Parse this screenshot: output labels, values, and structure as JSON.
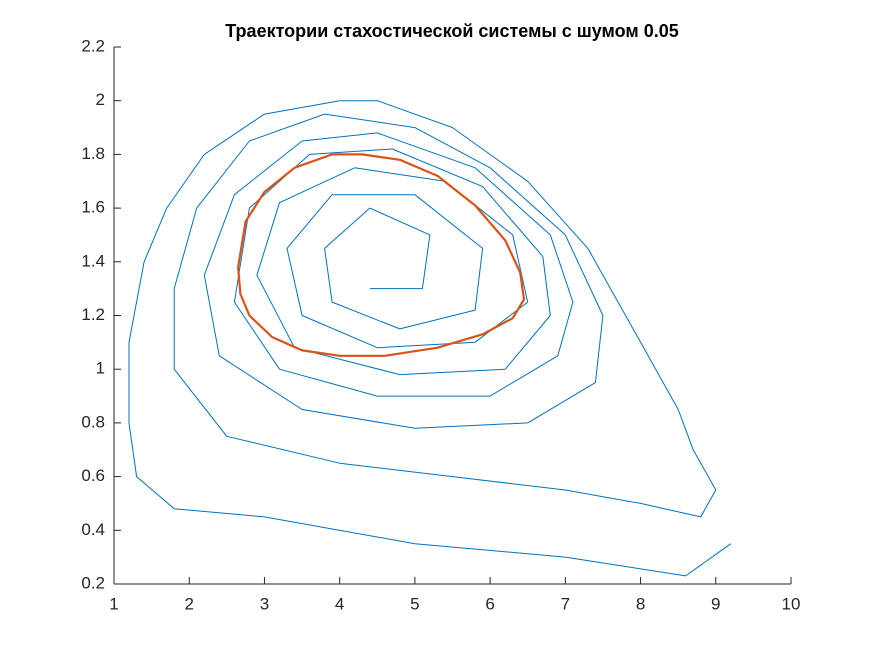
{
  "chart_data": {
    "type": "line",
    "title": "Траектории стахостической системы с шумом 0.05",
    "xlim": [
      1,
      10
    ],
    "xticks": [
      1,
      2,
      3,
      4,
      5,
      6,
      7,
      8,
      9,
      10
    ],
    "ylim": [
      0.2,
      2.2
    ],
    "yticks": [
      0.2,
      0.4,
      0.6,
      0.8,
      1,
      1.2,
      1.4,
      1.6,
      1.8,
      2,
      2.2
    ],
    "grid": false,
    "series": [
      {
        "color": "#0072bd",
        "x": [
          9.2,
          8.6,
          7,
          5,
          3,
          1.8,
          1.3,
          1.2,
          1.2,
          1.4,
          1.7,
          2.2,
          3,
          4,
          4.5,
          5.5,
          6.5,
          7.3,
          8,
          8.5,
          8.7,
          9.0,
          8.8,
          8.0,
          7.0,
          5.5,
          4,
          2.5,
          1.8,
          1.8,
          2.1,
          2.8,
          3.8,
          5,
          6,
          7,
          7.5,
          7.4,
          6.5,
          5,
          3.5,
          2.4,
          2.2,
          2.6,
          3.5,
          4.5,
          5.8,
          6.8,
          7.1,
          6.9,
          6,
          4.5,
          3.2,
          2.6,
          2.8,
          3.6,
          4.7,
          5.9,
          6.7,
          6.8,
          6.2,
          4.8,
          3.4,
          2.9,
          3.2,
          4.2,
          5.4,
          6.3,
          6.5,
          5.8,
          4.5,
          3.5,
          3.3,
          3.9,
          5,
          5.9,
          5.8,
          4.8,
          3.9,
          3.8,
          4.4,
          5.2,
          5.1,
          4.4
        ],
        "values": [
          0.35,
          0.23,
          0.3,
          0.35,
          0.45,
          0.48,
          0.6,
          0.8,
          1.1,
          1.4,
          1.6,
          1.8,
          1.95,
          2.0,
          2.0,
          1.9,
          1.7,
          1.45,
          1.1,
          0.85,
          0.7,
          0.55,
          0.45,
          0.5,
          0.55,
          0.6,
          0.65,
          0.75,
          1.0,
          1.3,
          1.6,
          1.85,
          1.95,
          1.9,
          1.75,
          1.5,
          1.2,
          0.95,
          0.8,
          0.78,
          0.85,
          1.05,
          1.35,
          1.65,
          1.85,
          1.88,
          1.75,
          1.5,
          1.25,
          1.05,
          0.9,
          0.9,
          1.0,
          1.25,
          1.6,
          1.8,
          1.82,
          1.68,
          1.42,
          1.2,
          1.0,
          0.98,
          1.08,
          1.35,
          1.62,
          1.75,
          1.7,
          1.5,
          1.25,
          1.1,
          1.08,
          1.2,
          1.45,
          1.65,
          1.65,
          1.45,
          1.22,
          1.15,
          1.25,
          1.45,
          1.6,
          1.5,
          1.3,
          1.3
        ]
      },
      {
        "color": "#d95319",
        "x": [
          2.65,
          2.75,
          3.0,
          3.4,
          3.9,
          4.3,
          4.8,
          5.3,
          5.8,
          6.2,
          6.4,
          6.45,
          6.3,
          5.9,
          5.3,
          4.6,
          4.0,
          3.5,
          3.1,
          2.8,
          2.68,
          2.65
        ],
        "values": [
          1.38,
          1.55,
          1.66,
          1.75,
          1.8,
          1.8,
          1.78,
          1.72,
          1.61,
          1.48,
          1.36,
          1.26,
          1.19,
          1.13,
          1.08,
          1.05,
          1.05,
          1.07,
          1.12,
          1.2,
          1.28,
          1.38
        ]
      }
    ]
  }
}
